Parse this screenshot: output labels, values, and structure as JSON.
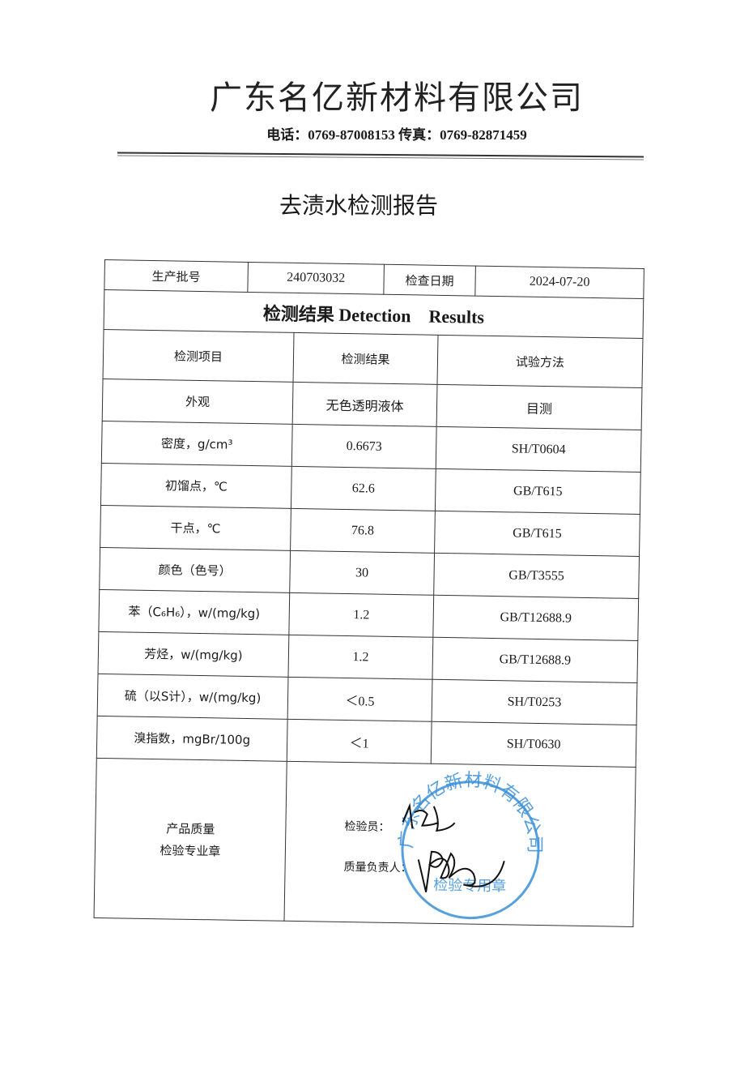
{
  "header": {
    "company": "广东名亿新材料有限公司",
    "contact": "电话：0769-87008153 传真：0769-82871459"
  },
  "report_title": "去渍水检测报告",
  "info": {
    "batch_label": "生产批号",
    "batch_value": "240703032",
    "date_label": "检查日期",
    "date_value": "2024-07-20"
  },
  "section_title": "检测结果 Detection　Results",
  "columns": [
    "检测项目",
    "检测结果",
    "试验方法"
  ],
  "rows": [
    {
      "item": "外观",
      "result": "无色透明液体",
      "method": "目测"
    },
    {
      "item": "密度，g/cm³",
      "result": "0.6673",
      "method": "SH/T0604"
    },
    {
      "item": "初馏点，℃",
      "result": "62.6",
      "method": "GB/T615"
    },
    {
      "item": "干点，℃",
      "result": "76.8",
      "method": "GB/T615"
    },
    {
      "item": "颜色（色号）",
      "result": "30",
      "method": "GB/T3555"
    },
    {
      "item": "苯（C₆H₆），w/(mg/kg)",
      "result": "1.2",
      "method": "GB/T12688.9"
    },
    {
      "item": "芳烃，w/(mg/kg)",
      "result": "1.2",
      "method": "GB/T12688.9"
    },
    {
      "item": "硫（以S计），w/(mg/kg)",
      "result": "＜0.5",
      "method": "SH/T0253"
    },
    {
      "item": "溴指数，mgBr/100g",
      "result": "＜1",
      "method": "SH/T0630"
    }
  ],
  "footer": {
    "seal_label_1": "产品质量",
    "seal_label_2": "检验专业章",
    "inspector_label": "检验员：",
    "quality_label": "质量负责人："
  },
  "stamp": {
    "outer_text": "广东名亿新材料有限公司",
    "inner_text": "检验专用章",
    "color": "#3a8fd8"
  }
}
